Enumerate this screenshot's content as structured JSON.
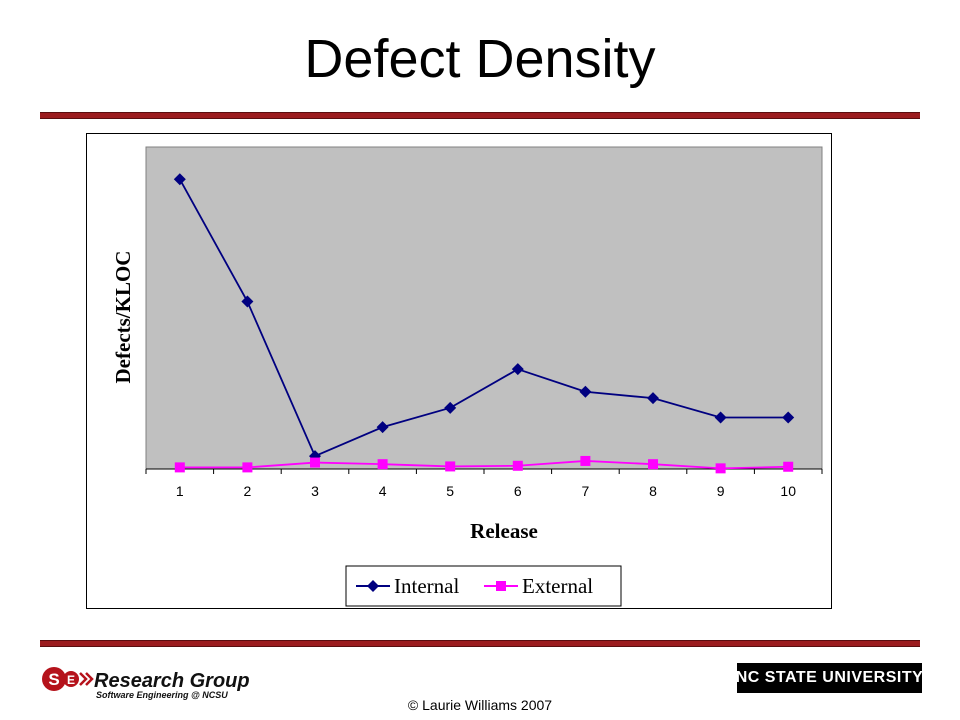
{
  "page": {
    "title": "Defect Density",
    "copyright": "© Laurie Williams 2007",
    "logo_left": {
      "name": "Research Group",
      "tagline": "Software Engineering @ NCSU",
      "icon": "se-research-group-logo"
    },
    "logo_right": {
      "text": "NC STATE UNIVERSITY"
    }
  },
  "colors": {
    "rule": "#9b1c1f",
    "plot_bg": "#c0c0c0",
    "internal": "#000080",
    "external": "#ff00ff"
  },
  "chart_data": {
    "type": "line",
    "title": "",
    "xlabel": "Release",
    "ylabel": "Defects/KLOC",
    "categories": [
      "1",
      "2",
      "3",
      "4",
      "5",
      "6",
      "7",
      "8",
      "9",
      "10"
    ],
    "ylim": [
      0,
      100
    ],
    "y_ticks_shown": false,
    "grid": false,
    "legend": "bottom",
    "series": [
      {
        "name": "Internal",
        "marker": "diamond",
        "values": [
          90,
          52,
          4,
          13,
          19,
          31,
          24,
          22,
          16,
          16
        ]
      },
      {
        "name": "External",
        "marker": "square",
        "values": [
          0.5,
          0.5,
          2,
          1.5,
          0.8,
          1,
          2.5,
          1.5,
          0.2,
          0.7
        ]
      }
    ]
  }
}
